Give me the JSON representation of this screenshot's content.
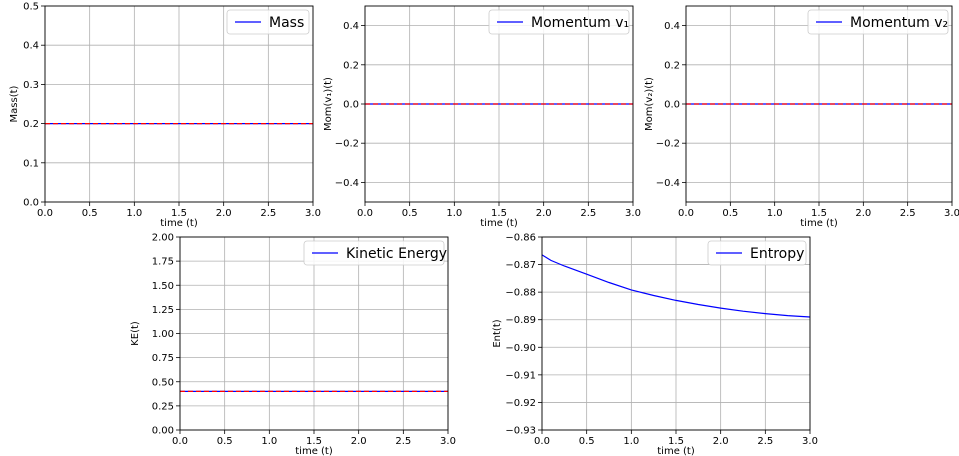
{
  "colors": {
    "series": "#0000ff",
    "reference": "#ff0000",
    "grid": "#b0b0b0",
    "axis": "#000000"
  },
  "chart_data": [
    {
      "type": "line",
      "xlabel": "time (t)",
      "ylabel": "Mass(t)",
      "xlim": [
        0,
        3
      ],
      "ylim": [
        0,
        0.5
      ],
      "xticks": [
        "0.0",
        "0.5",
        "1.0",
        "1.5",
        "2.0",
        "2.5",
        "3.0"
      ],
      "yticks": [
        "0.0",
        "0.1",
        "0.2",
        "0.3",
        "0.4",
        "0.5"
      ],
      "grid": true,
      "legend": "top-right",
      "series": [
        {
          "name": "Mass",
          "x": [
            0,
            3
          ],
          "y": [
            0.2,
            0.2
          ]
        },
        {
          "style": "dashed",
          "x": [
            0,
            3
          ],
          "y": [
            0.2,
            0.2
          ]
        }
      ]
    },
    {
      "type": "line",
      "xlabel": "time (t)",
      "ylabel": "Mom(v₁)(t)",
      "xlim": [
        0,
        3
      ],
      "ylim": [
        -0.5,
        0.5
      ],
      "xticks": [
        "0.0",
        "0.5",
        "1.0",
        "1.5",
        "2.0",
        "2.5",
        "3.0"
      ],
      "yticks": [
        "−0.4",
        "−0.2",
        "0.0",
        "0.2",
        "0.4"
      ],
      "grid": true,
      "legend": "top-right",
      "series": [
        {
          "name": "Momentum v₁",
          "x": [
            0,
            3
          ],
          "y": [
            0,
            0
          ]
        },
        {
          "style": "dashed",
          "x": [
            0,
            3
          ],
          "y": [
            0,
            0
          ]
        }
      ]
    },
    {
      "type": "line",
      "xlabel": "time (t)",
      "ylabel": "Mom(v₂)(t)",
      "xlim": [
        0,
        3
      ],
      "ylim": [
        -0.5,
        0.5
      ],
      "xticks": [
        "0.0",
        "0.5",
        "1.0",
        "1.5",
        "2.0",
        "2.5",
        "3.0"
      ],
      "yticks": [
        "−0.4",
        "−0.2",
        "0.0",
        "0.2",
        "0.4"
      ],
      "grid": true,
      "legend": "top-right",
      "series": [
        {
          "name": "Momentum v₂",
          "x": [
            0,
            3
          ],
          "y": [
            0,
            0
          ]
        },
        {
          "style": "dashed",
          "x": [
            0,
            3
          ],
          "y": [
            0,
            0
          ]
        }
      ]
    },
    {
      "type": "line",
      "xlabel": "time (t)",
      "ylabel": "KE(t)",
      "xlim": [
        0,
        3
      ],
      "ylim": [
        0,
        2
      ],
      "xticks": [
        "0.0",
        "0.5",
        "1.0",
        "1.5",
        "2.0",
        "2.5",
        "3.0"
      ],
      "yticks": [
        "0.00",
        "0.25",
        "0.50",
        "0.75",
        "1.00",
        "1.25",
        "1.50",
        "1.75",
        "2.00"
      ],
      "grid": true,
      "legend": "top-right",
      "series": [
        {
          "name": "Kinetic Energy",
          "x": [
            0,
            3
          ],
          "y": [
            0.4,
            0.4
          ]
        },
        {
          "style": "dashed",
          "x": [
            0,
            3
          ],
          "y": [
            0.4,
            0.4
          ]
        }
      ]
    },
    {
      "type": "line",
      "xlabel": "time (t)",
      "ylabel": "Ent(t)",
      "xlim": [
        0,
        3
      ],
      "ylim": [
        -0.93,
        -0.86
      ],
      "xticks": [
        "0.0",
        "0.5",
        "1.0",
        "1.5",
        "2.0",
        "2.5",
        "3.0"
      ],
      "yticks": [
        "−0.93",
        "−0.92",
        "−0.91",
        "−0.90",
        "−0.89",
        "−0.88",
        "−0.87",
        "−0.86"
      ],
      "grid": true,
      "legend": "top-right",
      "series": [
        {
          "name": "Entropy",
          "x": [
            0,
            0.1,
            0.25,
            0.5,
            0.75,
            1.0,
            1.25,
            1.5,
            1.75,
            2.0,
            2.25,
            2.5,
            2.75,
            3.0
          ],
          "y": [
            -0.8665,
            -0.8685,
            -0.8705,
            -0.8735,
            -0.8765,
            -0.8792,
            -0.8812,
            -0.883,
            -0.8845,
            -0.8858,
            -0.8869,
            -0.8878,
            -0.8885,
            -0.889
          ]
        }
      ]
    }
  ]
}
